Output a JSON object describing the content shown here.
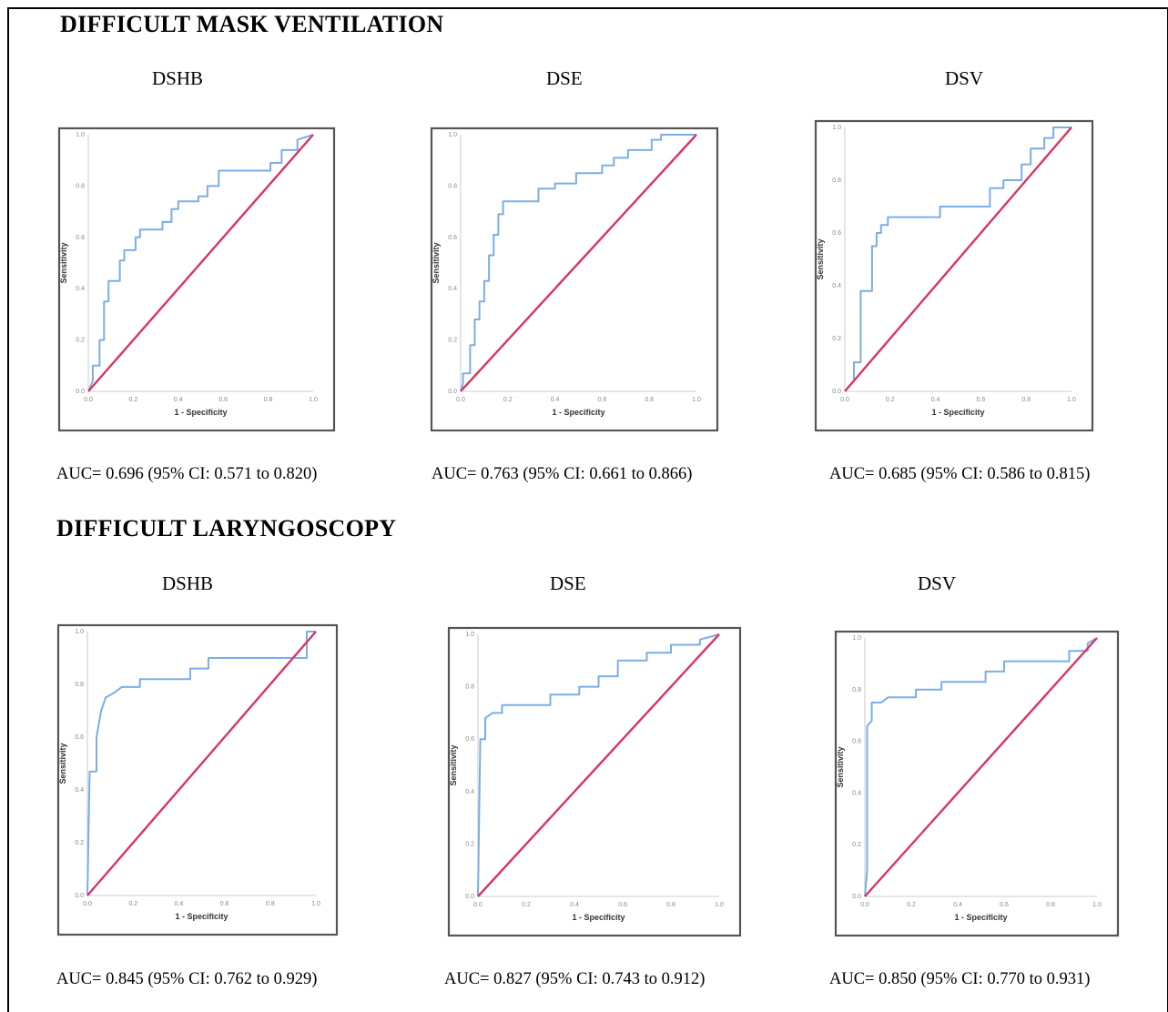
{
  "sections": [
    {
      "title": "DIFFICULT MASK VENTILATION"
    },
    {
      "title": "DIFFICULT LARYNGOSCOPY"
    }
  ],
  "style": {
    "roc_color": "#7aaee6",
    "reference_color": "#d9355f",
    "frame_color": "#555555"
  },
  "chart_data": [
    {
      "type": "line",
      "panel_title": "DSHB",
      "xlabel": "1 - Specificity",
      "ylabel": "Sensitivity",
      "xlim": [
        0,
        1
      ],
      "ylim": [
        0,
        1
      ],
      "ticks": [
        "0.0",
        "0.2",
        "0.4",
        "0.6",
        "0.8",
        "1.0"
      ],
      "auc_text": "AUC= 0.696 (95% CI: 0.571 to 0.820)",
      "series": [
        {
          "values_xy": [
            [
              0,
              0
            ],
            [
              0.02,
              0.04
            ],
            [
              0.02,
              0.1
            ],
            [
              0.05,
              0.1
            ],
            [
              0.05,
              0.2
            ],
            [
              0.07,
              0.2
            ],
            [
              0.07,
              0.35
            ],
            [
              0.09,
              0.35
            ],
            [
              0.09,
              0.43
            ],
            [
              0.14,
              0.43
            ],
            [
              0.14,
              0.51
            ],
            [
              0.16,
              0.51
            ],
            [
              0.16,
              0.55
            ],
            [
              0.21,
              0.55
            ],
            [
              0.21,
              0.6
            ],
            [
              0.23,
              0.6
            ],
            [
              0.23,
              0.63
            ],
            [
              0.33,
              0.63
            ],
            [
              0.33,
              0.66
            ],
            [
              0.37,
              0.66
            ],
            [
              0.37,
              0.71
            ],
            [
              0.4,
              0.71
            ],
            [
              0.4,
              0.74
            ],
            [
              0.49,
              0.74
            ],
            [
              0.49,
              0.76
            ],
            [
              0.53,
              0.76
            ],
            [
              0.53,
              0.8
            ],
            [
              0.58,
              0.8
            ],
            [
              0.58,
              0.86
            ],
            [
              0.81,
              0.86
            ],
            [
              0.81,
              0.89
            ],
            [
              0.86,
              0.89
            ],
            [
              0.86,
              0.94
            ],
            [
              0.93,
              0.94
            ],
            [
              0.93,
              0.98
            ],
            [
              1,
              1
            ]
          ]
        },
        {
          "values_xy": [
            [
              0,
              0
            ],
            [
              1,
              1
            ]
          ]
        }
      ]
    },
    {
      "type": "line",
      "panel_title": "DSE",
      "xlabel": "1 - Specificity",
      "ylabel": "Sensitivity",
      "xlim": [
        0,
        1
      ],
      "ylim": [
        0,
        1
      ],
      "ticks": [
        "0.0",
        "0.2",
        "0.4",
        "0.6",
        "0.8",
        "1.0"
      ],
      "auc_text": "AUC= 0.763 (95% CI: 0.661 to 0.866)",
      "series": [
        {
          "values_xy": [
            [
              0,
              0
            ],
            [
              0.01,
              0.03
            ],
            [
              0.01,
              0.07
            ],
            [
              0.04,
              0.07
            ],
            [
              0.04,
              0.18
            ],
            [
              0.06,
              0.18
            ],
            [
              0.06,
              0.28
            ],
            [
              0.08,
              0.28
            ],
            [
              0.08,
              0.35
            ],
            [
              0.1,
              0.35
            ],
            [
              0.1,
              0.43
            ],
            [
              0.12,
              0.43
            ],
            [
              0.12,
              0.53
            ],
            [
              0.14,
              0.53
            ],
            [
              0.14,
              0.61
            ],
            [
              0.16,
              0.61
            ],
            [
              0.16,
              0.69
            ],
            [
              0.18,
              0.69
            ],
            [
              0.18,
              0.74
            ],
            [
              0.33,
              0.74
            ],
            [
              0.33,
              0.79
            ],
            [
              0.4,
              0.79
            ],
            [
              0.4,
              0.81
            ],
            [
              0.49,
              0.81
            ],
            [
              0.49,
              0.85
            ],
            [
              0.6,
              0.85
            ],
            [
              0.6,
              0.88
            ],
            [
              0.65,
              0.88
            ],
            [
              0.65,
              0.91
            ],
            [
              0.71,
              0.91
            ],
            [
              0.71,
              0.94
            ],
            [
              0.81,
              0.94
            ],
            [
              0.81,
              0.98
            ],
            [
              0.85,
              0.98
            ],
            [
              0.85,
              1
            ],
            [
              1,
              1
            ]
          ]
        },
        {
          "values_xy": [
            [
              0,
              0
            ],
            [
              1,
              1
            ]
          ]
        }
      ]
    },
    {
      "type": "line",
      "panel_title": "DSV",
      "xlabel": "1 - Specificity",
      "ylabel": "Sensitivity",
      "xlim": [
        0,
        1
      ],
      "ylim": [
        0,
        1
      ],
      "ticks": [
        "0.0",
        "0.2",
        "0.4",
        "0.6",
        "0.8",
        "1.0"
      ],
      "auc_text": "AUC= 0.685 (95% CI: 0.586 to 0.815)",
      "series": [
        {
          "values_xy": [
            [
              0,
              0
            ],
            [
              0.04,
              0.04
            ],
            [
              0.04,
              0.11
            ],
            [
              0.07,
              0.11
            ],
            [
              0.07,
              0.38
            ],
            [
              0.12,
              0.38
            ],
            [
              0.12,
              0.55
            ],
            [
              0.14,
              0.55
            ],
            [
              0.14,
              0.6
            ],
            [
              0.16,
              0.6
            ],
            [
              0.16,
              0.63
            ],
            [
              0.19,
              0.63
            ],
            [
              0.19,
              0.66
            ],
            [
              0.42,
              0.66
            ],
            [
              0.42,
              0.7
            ],
            [
              0.64,
              0.7
            ],
            [
              0.64,
              0.77
            ],
            [
              0.7,
              0.77
            ],
            [
              0.7,
              0.8
            ],
            [
              0.78,
              0.8
            ],
            [
              0.78,
              0.86
            ],
            [
              0.82,
              0.86
            ],
            [
              0.82,
              0.92
            ],
            [
              0.88,
              0.92
            ],
            [
              0.88,
              0.96
            ],
            [
              0.92,
              0.96
            ],
            [
              0.92,
              1
            ],
            [
              1,
              1
            ]
          ]
        },
        {
          "values_xy": [
            [
              0,
              0
            ],
            [
              1,
              1
            ]
          ]
        }
      ]
    },
    {
      "type": "line",
      "panel_title": "DSHB",
      "xlabel": "1 - Specificity",
      "ylabel": "Sensitivity",
      "xlim": [
        0,
        1
      ],
      "ylim": [
        0,
        1
      ],
      "ticks": [
        "0.0",
        "0.2",
        "0.4",
        "0.6",
        "0.8",
        "1.0"
      ],
      "auc_text": "AUC= 0.845 (95% CI: 0.762 to 0.929)",
      "series": [
        {
          "values_xy": [
            [
              0,
              0
            ],
            [
              0.01,
              0.47
            ],
            [
              0.04,
              0.47
            ],
            [
              0.04,
              0.6
            ],
            [
              0.06,
              0.7
            ],
            [
              0.08,
              0.75
            ],
            [
              0.12,
              0.77
            ],
            [
              0.15,
              0.79
            ],
            [
              0.23,
              0.79
            ],
            [
              0.23,
              0.82
            ],
            [
              0.45,
              0.82
            ],
            [
              0.45,
              0.86
            ],
            [
              0.53,
              0.86
            ],
            [
              0.53,
              0.9
            ],
            [
              0.96,
              0.9
            ],
            [
              0.96,
              1
            ],
            [
              1,
              1
            ]
          ]
        },
        {
          "values_xy": [
            [
              0,
              0
            ],
            [
              1,
              1
            ]
          ]
        }
      ]
    },
    {
      "type": "line",
      "panel_title": "DSE",
      "xlabel": "1 - Specificity",
      "ylabel": "Sensitivity",
      "xlim": [
        0,
        1
      ],
      "ylim": [
        0,
        1
      ],
      "ticks": [
        "0.0",
        "0.2",
        "0.4",
        "0.6",
        "0.8",
        "1.0"
      ],
      "auc_text": "AUC= 0.827 (95% CI: 0.743 to 0.912)",
      "series": [
        {
          "values_xy": [
            [
              0,
              0
            ],
            [
              0.01,
              0.6
            ],
            [
              0.03,
              0.6
            ],
            [
              0.03,
              0.68
            ],
            [
              0.06,
              0.7
            ],
            [
              0.1,
              0.7
            ],
            [
              0.1,
              0.73
            ],
            [
              0.3,
              0.73
            ],
            [
              0.3,
              0.77
            ],
            [
              0.42,
              0.77
            ],
            [
              0.42,
              0.8
            ],
            [
              0.5,
              0.8
            ],
            [
              0.5,
              0.84
            ],
            [
              0.58,
              0.84
            ],
            [
              0.58,
              0.9
            ],
            [
              0.7,
              0.9
            ],
            [
              0.7,
              0.93
            ],
            [
              0.8,
              0.93
            ],
            [
              0.8,
              0.96
            ],
            [
              0.92,
              0.96
            ],
            [
              0.92,
              0.98
            ],
            [
              1,
              1
            ]
          ]
        },
        {
          "values_xy": [
            [
              0,
              0
            ],
            [
              1,
              1
            ]
          ]
        }
      ]
    },
    {
      "type": "line",
      "panel_title": "DSV",
      "xlabel": "1 - Specificity",
      "ylabel": "Sensitivity",
      "xlim": [
        0,
        1
      ],
      "ylim": [
        0,
        1
      ],
      "ticks": [
        "0.0",
        "0.2",
        "0.4",
        "0.6",
        "0.8",
        "1.0"
      ],
      "auc_text": "AUC= 0.850 (95% CI: 0.770 to 0.931)",
      "series": [
        {
          "values_xy": [
            [
              0,
              0
            ],
            [
              0.01,
              0.1
            ],
            [
              0.01,
              0.66
            ],
            [
              0.03,
              0.68
            ],
            [
              0.03,
              0.75
            ],
            [
              0.07,
              0.75
            ],
            [
              0.1,
              0.77
            ],
            [
              0.22,
              0.77
            ],
            [
              0.22,
              0.8
            ],
            [
              0.33,
              0.8
            ],
            [
              0.33,
              0.83
            ],
            [
              0.52,
              0.83
            ],
            [
              0.52,
              0.87
            ],
            [
              0.6,
              0.87
            ],
            [
              0.6,
              0.91
            ],
            [
              0.88,
              0.91
            ],
            [
              0.88,
              0.95
            ],
            [
              0.96,
              0.95
            ],
            [
              0.96,
              0.98
            ],
            [
              1,
              1
            ]
          ]
        },
        {
          "values_xy": [
            [
              0,
              0
            ],
            [
              1,
              1
            ]
          ]
        }
      ]
    }
  ]
}
